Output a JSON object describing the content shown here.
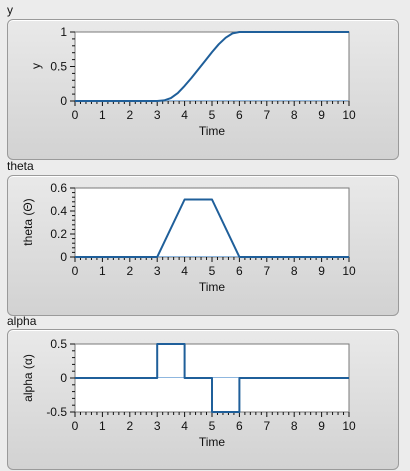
{
  "charts": [
    {
      "label": "y",
      "xlabel": "Time",
      "ylabel": "y",
      "yticks": [
        "0",
        "0.5",
        "1"
      ]
    },
    {
      "label": "theta",
      "xlabel": "Time",
      "ylabel": "theta (Θ)",
      "yticks": [
        "0",
        "0.2",
        "0.4",
        "0.6"
      ]
    },
    {
      "label": "alpha",
      "xlabel": "Time",
      "ylabel": "alpha (α)",
      "yticks": [
        "-0.5",
        "0",
        "0.5"
      ]
    }
  ],
  "xticks": [
    "0",
    "1",
    "2",
    "3",
    "4",
    "5",
    "6",
    "7",
    "8",
    "9",
    "10"
  ],
  "colors": {
    "line": "#1f5f9a",
    "plot_bg": "#ffffff",
    "zero_line": "#8fb7df"
  },
  "chart_data": [
    {
      "type": "line",
      "title": "y",
      "xlabel": "Time",
      "ylabel": "y",
      "xlim": [
        0,
        10
      ],
      "ylim": [
        0,
        1
      ],
      "grid": false,
      "x": [
        0,
        3,
        3.25,
        3.5,
        3.75,
        4,
        4.25,
        4.5,
        4.75,
        5,
        5.25,
        5.5,
        5.75,
        6,
        10
      ],
      "values": [
        0,
        0,
        0.008,
        0.042,
        0.115,
        0.219,
        0.333,
        0.458,
        0.583,
        0.708,
        0.823,
        0.917,
        0.979,
        1,
        1
      ]
    },
    {
      "type": "line",
      "title": "theta",
      "xlabel": "Time",
      "ylabel": "theta (Θ)",
      "xlim": [
        0,
        10
      ],
      "ylim": [
        0,
        0.6
      ],
      "grid": false,
      "x": [
        0,
        3,
        4,
        5,
        6,
        10
      ],
      "values": [
        0,
        0,
        0.5,
        0.5,
        0,
        0
      ]
    },
    {
      "type": "line",
      "title": "alpha",
      "xlabel": "Time",
      "ylabel": "alpha (α)",
      "xlim": [
        0,
        10
      ],
      "ylim": [
        -0.5,
        0.5
      ],
      "grid": false,
      "x": [
        0,
        3,
        3,
        4,
        4,
        5,
        5,
        6,
        6,
        10
      ],
      "values": [
        0,
        0,
        0.5,
        0.5,
        0,
        0,
        -0.5,
        -0.5,
        0,
        0
      ]
    }
  ]
}
